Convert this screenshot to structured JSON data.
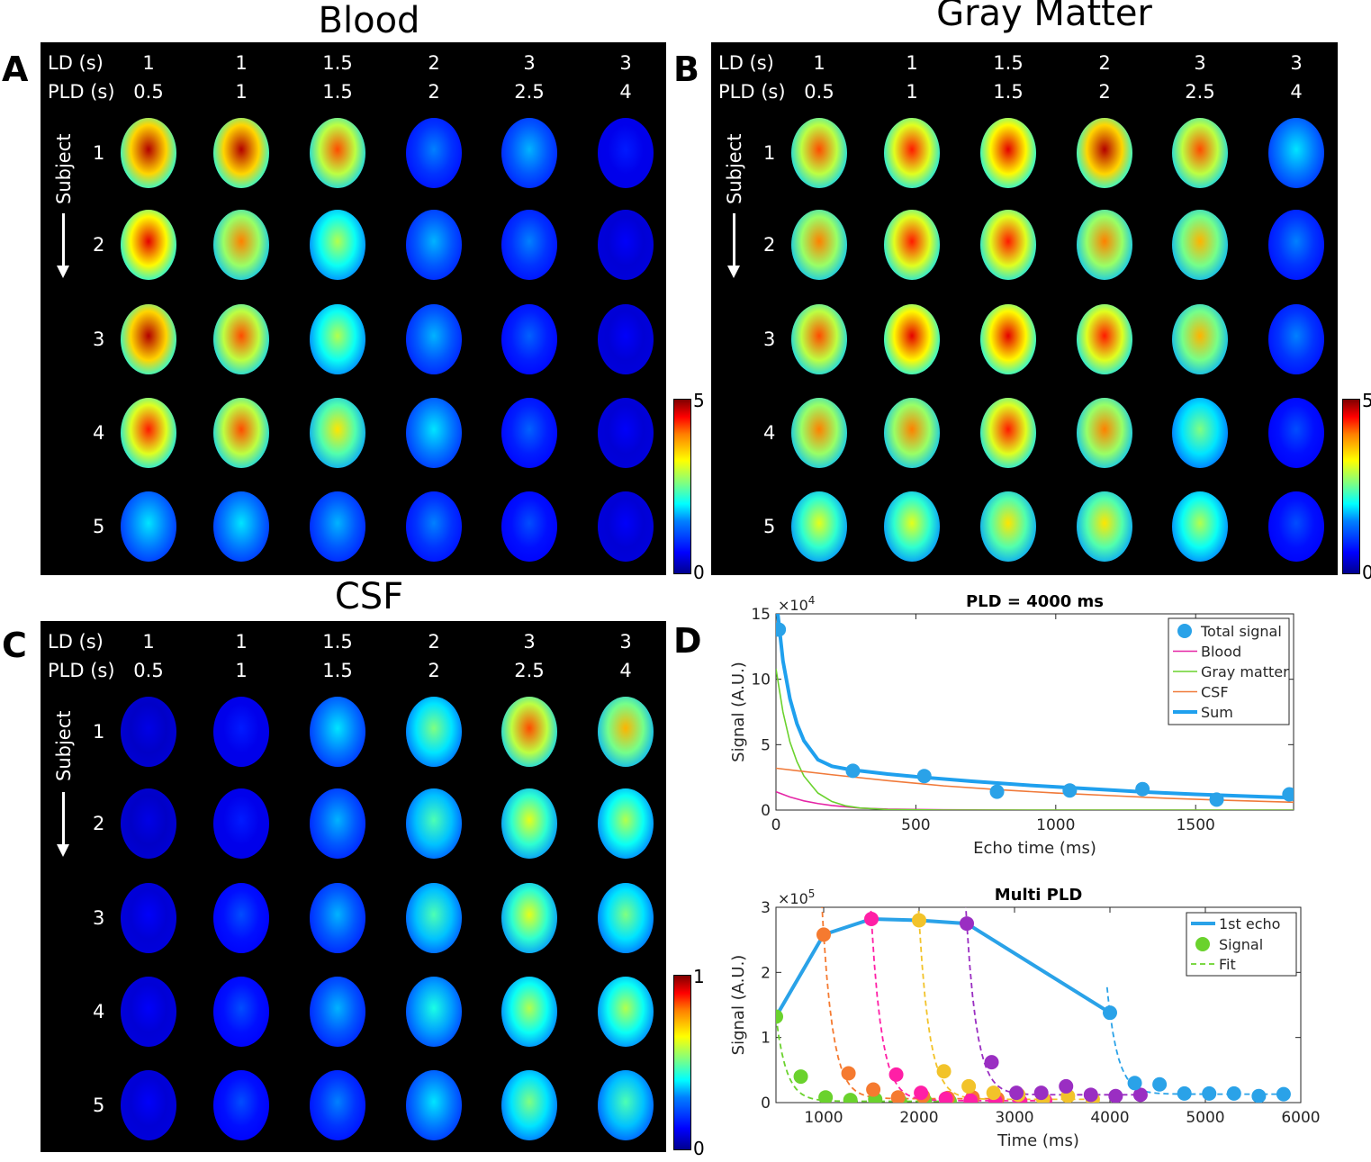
{
  "panels": [
    {
      "letter": "A",
      "title": "Blood",
      "cbar_max": "5",
      "cbar_min": "0",
      "intensity": [
        [
          0.95,
          0.95,
          0.8,
          0.25,
          0.3,
          0.15
        ],
        [
          0.9,
          0.75,
          0.55,
          0.3,
          0.25,
          0.12
        ],
        [
          0.95,
          0.8,
          0.55,
          0.3,
          0.22,
          0.12
        ],
        [
          0.85,
          0.8,
          0.65,
          0.35,
          0.22,
          0.12
        ],
        [
          0.35,
          0.35,
          0.3,
          0.25,
          0.2,
          0.12
        ]
      ]
    },
    {
      "letter": "B",
      "title": "Gray Matter",
      "cbar_max": "5",
      "cbar_min": "0",
      "intensity": [
        [
          0.8,
          0.85,
          0.9,
          0.95,
          0.8,
          0.35
        ],
        [
          0.75,
          0.85,
          0.85,
          0.75,
          0.7,
          0.25
        ],
        [
          0.8,
          0.9,
          0.9,
          0.85,
          0.7,
          0.25
        ],
        [
          0.75,
          0.75,
          0.85,
          0.75,
          0.5,
          0.2
        ],
        [
          0.6,
          0.6,
          0.65,
          0.65,
          0.55,
          0.2
        ]
      ]
    },
    {
      "letter": "C",
      "title": "CSF",
      "cbar_max": "1",
      "cbar_min": "0",
      "intensity": [
        [
          0.1,
          0.15,
          0.35,
          0.5,
          0.8,
          0.7
        ],
        [
          0.1,
          0.15,
          0.3,
          0.45,
          0.6,
          0.55
        ],
        [
          0.12,
          0.2,
          0.3,
          0.45,
          0.6,
          0.5
        ],
        [
          0.12,
          0.2,
          0.3,
          0.4,
          0.55,
          0.55
        ],
        [
          0.12,
          0.2,
          0.25,
          0.35,
          0.5,
          0.45
        ]
      ]
    }
  ],
  "grid": {
    "ld_label": "LD (s)",
    "pld_label": "PLD (s)",
    "subject_label": "Subject",
    "ld_values": [
      "1",
      "1",
      "1.5",
      "2",
      "3",
      "3"
    ],
    "pld_values": [
      "0.5",
      "1",
      "1.5",
      "2",
      "2.5",
      "4"
    ],
    "subjects": [
      "1",
      "2",
      "3",
      "4",
      "5"
    ]
  },
  "panel_d_letter": "D",
  "chart_data": [
    {
      "type": "line",
      "title": "PLD = 4000 ms",
      "xlabel": "Echo time (ms)",
      "ylabel": "Signal (A.U.)",
      "exponent": "×10",
      "exponent_power": "4",
      "xlim": [
        0,
        1850
      ],
      "ylim": [
        0,
        15
      ],
      "xticks": [
        "0",
        "500",
        "1000",
        "1500"
      ],
      "xtick_values": [
        0,
        500,
        1000,
        1500
      ],
      "yticks": [
        "0",
        "5",
        "10",
        "15"
      ],
      "ytick_values": [
        0,
        5,
        10,
        15
      ],
      "legend": [
        "Total signal",
        "Blood",
        "Gray matter",
        "CSF",
        "Sum"
      ],
      "colors": {
        "total": "#2aa2e8",
        "blood": "#e526a6",
        "gm": "#6ad22d",
        "csf": "#f07a3a",
        "sum": "#1fa0ee"
      },
      "total_signal": {
        "x": [
          10,
          275,
          530,
          790,
          1050,
          1310,
          1575,
          1835
        ],
        "y": [
          13.8,
          3.0,
          2.6,
          1.4,
          1.5,
          1.6,
          0.8,
          1.2
        ]
      },
      "blood": {
        "x": [
          0,
          50,
          100,
          150,
          200,
          300,
          400,
          600,
          900,
          1850
        ],
        "y": [
          1.4,
          1.0,
          0.7,
          0.5,
          0.35,
          0.15,
          0.07,
          0.02,
          0,
          0
        ]
      },
      "gray_matter": {
        "x": [
          0,
          25,
          50,
          75,
          100,
          150,
          200,
          250,
          300,
          400,
          600,
          1850
        ],
        "y": [
          10.8,
          7.5,
          5.2,
          3.7,
          2.6,
          1.3,
          0.65,
          0.32,
          0.16,
          0.04,
          0,
          0
        ]
      },
      "csf": {
        "x": [
          0,
          200,
          400,
          600,
          800,
          1000,
          1200,
          1400,
          1600,
          1850
        ],
        "y": [
          3.2,
          2.7,
          2.25,
          1.85,
          1.55,
          1.3,
          1.1,
          0.9,
          0.75,
          0.6
        ]
      },
      "sum": {
        "x": [
          5,
          25,
          50,
          75,
          100,
          150,
          200,
          250,
          300,
          400,
          500,
          700,
          900,
          1100,
          1300,
          1500,
          1700,
          1850
        ],
        "y": [
          15.3,
          11.4,
          8.5,
          6.6,
          5.3,
          3.85,
          3.35,
          3.15,
          3.0,
          2.75,
          2.55,
          2.2,
          1.9,
          1.65,
          1.4,
          1.2,
          1.05,
          0.95
        ]
      }
    },
    {
      "type": "line",
      "title": "Multi PLD",
      "xlabel": "Time (ms)",
      "ylabel": "Signal (A.U.)",
      "exponent": "×10",
      "exponent_power": "5",
      "xlim": [
        500,
        6000
      ],
      "ylim": [
        0,
        3
      ],
      "xticks": [
        "1000",
        "2000",
        "3000",
        "4000",
        "5000",
        "6000"
      ],
      "xtick_values": [
        1000,
        2000,
        3000,
        4000,
        5000,
        6000
      ],
      "yticks": [
        "0",
        "1",
        "2",
        "3"
      ],
      "ytick_values": [
        0,
        1,
        2,
        3
      ],
      "legend": [
        "1st echo",
        "Signal",
        "Fit"
      ],
      "first_echo": {
        "x": [
          500,
          1000,
          1500,
          2000,
          2500,
          4000
        ],
        "y": [
          1.32,
          2.58,
          2.82,
          2.8,
          2.75,
          1.38
        ]
      },
      "series": [
        {
          "name": "PLD 500",
          "color": "#6ad22d",
          "x": [
            500,
            760,
            1020,
            1280,
            1540,
            1800,
            2060,
            2320
          ],
          "y": [
            1.32,
            0.4,
            0.08,
            0.04,
            0.05,
            0.02,
            0.03,
            0.02
          ]
        },
        {
          "name": "PLD 1000",
          "color": "#f57a30",
          "x": [
            1000,
            1260,
            1520,
            1780,
            2040,
            2300,
            2560,
            2820
          ],
          "y": [
            2.58,
            0.45,
            0.2,
            0.08,
            0.1,
            0.07,
            0.08,
            0.06
          ]
        },
        {
          "name": "PLD 1500",
          "color": "#ff1fa6",
          "x": [
            1500,
            1760,
            2020,
            2280,
            2540,
            2800,
            3060,
            3320
          ],
          "y": [
            2.82,
            0.43,
            0.15,
            0.06,
            0.03,
            0.02,
            0.02,
            0.03
          ]
        },
        {
          "name": "PLD 2000",
          "color": "#f2c32a",
          "x": [
            2000,
            2260,
            2520,
            2780,
            3040,
            3300,
            3560,
            3820
          ],
          "y": [
            2.8,
            0.48,
            0.25,
            0.15,
            0.12,
            0.06,
            0.1,
            0.05
          ]
        },
        {
          "name": "PLD 2500",
          "color": "#9a2ec2",
          "x": [
            2500,
            2760,
            3020,
            3280,
            3540,
            3800,
            4060,
            4320
          ],
          "y": [
            2.75,
            0.62,
            0.15,
            0.15,
            0.25,
            0.12,
            0.1,
            0.12
          ]
        },
        {
          "name": "PLD 4000",
          "color": "#2aa2e8",
          "x": [
            4000,
            4260,
            4520,
            4780,
            5040,
            5300,
            5560,
            5820
          ],
          "y": [
            1.38,
            0.3,
            0.28,
            0.14,
            0.14,
            0.14,
            0.1,
            0.13
          ]
        }
      ]
    }
  ]
}
